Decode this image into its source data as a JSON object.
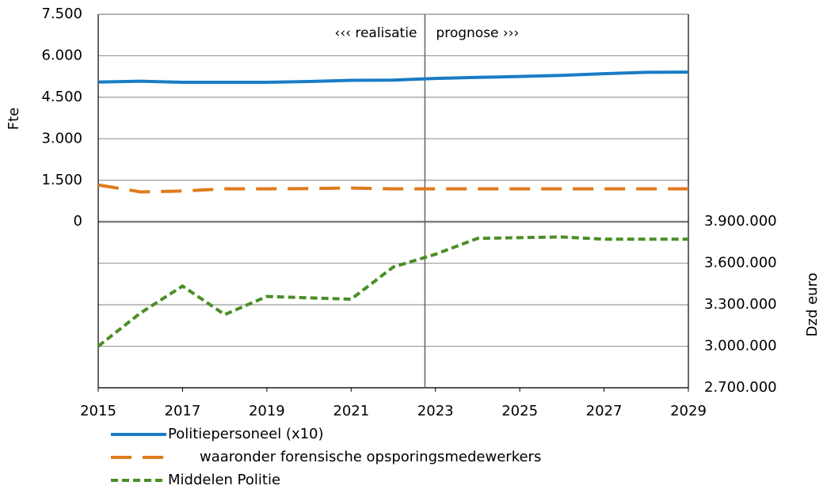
{
  "chart_data": {
    "type": "line",
    "ylabel": "Fte",
    "y2label": "Dzd euro",
    "annotations": [
      "‹‹‹ realisatie",
      "prognose ›››"
    ],
    "vline": 2022.75,
    "x": [
      2015,
      2016,
      2017,
      2018,
      2019,
      2020,
      2021,
      2022,
      2023,
      2024,
      2025,
      2026,
      2027,
      2028,
      2029
    ],
    "xlim": [
      2015,
      2029
    ],
    "xticks": [
      2015,
      2017,
      2019,
      2021,
      2023,
      2025,
      2027,
      2029
    ],
    "ylim": [
      -6000,
      7500
    ],
    "yticks": [
      0,
      {
        "value": 1500,
        "label": "1.500"
      },
      {
        "value": 3000,
        "label": "3.000"
      },
      {
        "value": 4500,
        "label": "4.500"
      },
      {
        "value": 6000,
        "label": "6.000"
      },
      {
        "value": 7500,
        "label": "7.500"
      }
    ],
    "y2lim": [
      2700000,
      5400000
    ],
    "y2ticks": [
      {
        "value": 2700000,
        "label": "2.700.000"
      },
      {
        "value": 3000000,
        "label": "3.000.000"
      },
      {
        "value": 3300000,
        "label": "3.300.000"
      },
      {
        "value": 3600000,
        "label": "3.600.000"
      },
      {
        "value": 3900000,
        "label": "3.900.000"
      }
    ],
    "grid": true,
    "series": [
      {
        "name": "Politiepersoneel (x10)",
        "color": "#1a7cc6",
        "dash": "solid",
        "values": [
          5050,
          5080,
          5040,
          5040,
          5040,
          5070,
          5110,
          5120,
          5180,
          5220,
          5250,
          5290,
          5350,
          5400,
          5410
        ]
      },
      {
        "name": "waaronder forensische opsporingsmedewerkers",
        "color": "#e07a1c",
        "dash": "long",
        "values": [
          1330,
          1080,
          1110,
          1190,
          1190,
          1200,
          1220,
          1190,
          1190,
          1190,
          1190,
          1190,
          1190,
          1190,
          1190
        ]
      },
      {
        "name": "Middelen Politie",
        "color": "#4a8e26",
        "dash": "short",
        "axis": "y2",
        "values": [
          3000000,
          3240000,
          3435000,
          3229000,
          3360000,
          3350000,
          3340000,
          3573000,
          3665000,
          3780000,
          3785000,
          3790000,
          3774000,
          3774000,
          3774000
        ]
      }
    ]
  }
}
